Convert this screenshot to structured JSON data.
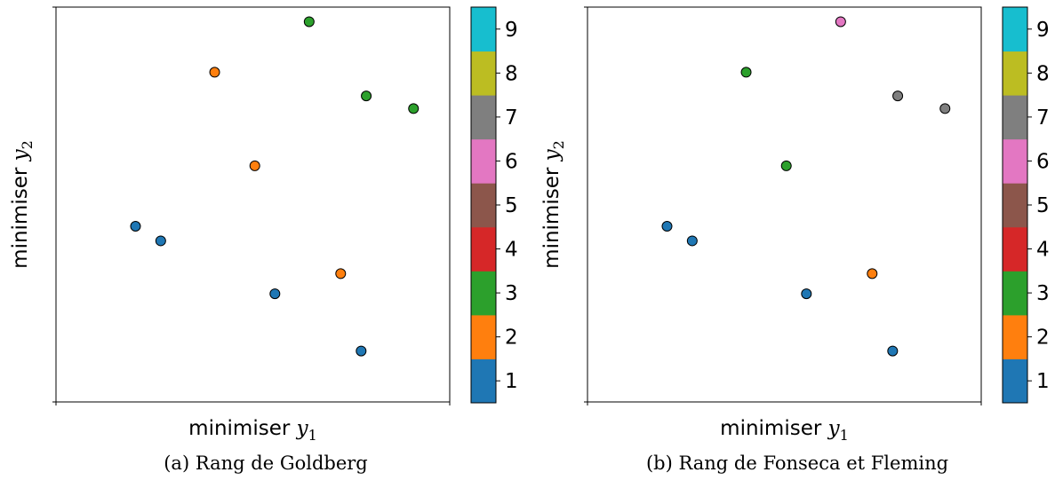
{
  "chart_data": [
    {
      "type": "scatter",
      "caption": "(a) Rang de Goldberg",
      "xlabel": "minimiser y1",
      "ylabel": "minimiser y2",
      "xlim": [
        0,
        1
      ],
      "ylim": [
        0,
        1
      ],
      "grid": false,
      "colorbar": {
        "ticks": [
          "1",
          "2",
          "3",
          "4",
          "5",
          "6",
          "7",
          "8",
          "9"
        ],
        "colors": [
          "#1f77b4",
          "#ff7f0e",
          "#2ca02c",
          "#d62728",
          "#8c564b",
          "#e377c2",
          "#7f7f7f",
          "#bcbd22",
          "#17becf"
        ]
      },
      "points": [
        {
          "x": 0.202,
          "y": 0.445,
          "rank": 1
        },
        {
          "x": 0.266,
          "y": 0.408,
          "rank": 1
        },
        {
          "x": 0.556,
          "y": 0.274,
          "rank": 1
        },
        {
          "x": 0.775,
          "y": 0.129,
          "rank": 1
        },
        {
          "x": 0.403,
          "y": 0.835,
          "rank": 2
        },
        {
          "x": 0.505,
          "y": 0.598,
          "rank": 2
        },
        {
          "x": 0.723,
          "y": 0.325,
          "rank": 2
        },
        {
          "x": 0.643,
          "y": 0.963,
          "rank": 3
        },
        {
          "x": 0.788,
          "y": 0.775,
          "rank": 3
        },
        {
          "x": 0.908,
          "y": 0.743,
          "rank": 3
        }
      ]
    },
    {
      "type": "scatter",
      "caption": "(b) Rang de Fonseca et Fleming",
      "xlabel": "minimiser y1",
      "ylabel": "minimiser y2",
      "xlim": [
        0,
        1
      ],
      "ylim": [
        0,
        1
      ],
      "grid": false,
      "colorbar": {
        "ticks": [
          "1",
          "2",
          "3",
          "4",
          "5",
          "6",
          "7",
          "8",
          "9"
        ],
        "colors": [
          "#1f77b4",
          "#ff7f0e",
          "#2ca02c",
          "#d62728",
          "#8c564b",
          "#e377c2",
          "#7f7f7f",
          "#bcbd22",
          "#17becf"
        ]
      },
      "points": [
        {
          "x": 0.202,
          "y": 0.445,
          "rank": 1
        },
        {
          "x": 0.266,
          "y": 0.408,
          "rank": 1
        },
        {
          "x": 0.556,
          "y": 0.274,
          "rank": 1
        },
        {
          "x": 0.775,
          "y": 0.129,
          "rank": 1
        },
        {
          "x": 0.723,
          "y": 0.325,
          "rank": 2
        },
        {
          "x": 0.403,
          "y": 0.835,
          "rank": 3
        },
        {
          "x": 0.505,
          "y": 0.598,
          "rank": 3
        },
        {
          "x": 0.643,
          "y": 0.963,
          "rank": 6
        },
        {
          "x": 0.788,
          "y": 0.775,
          "rank": 7
        },
        {
          "x": 0.908,
          "y": 0.743,
          "rank": 7
        }
      ]
    }
  ]
}
